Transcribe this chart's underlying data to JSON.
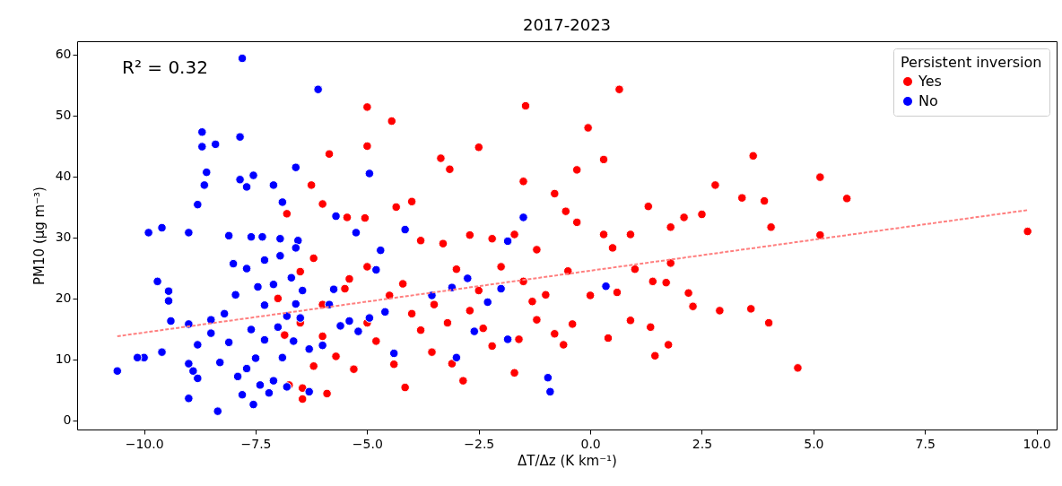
{
  "chart_data": {
    "type": "scatter",
    "title": "2017-2023",
    "xlabel": "ΔT/Δz (K km⁻¹)",
    "ylabel": "PM10 (μg m⁻³)",
    "legend_title": "Persistent inversion",
    "legend": "top right",
    "marker": "circle",
    "grid": false,
    "annotations": [
      "R² = 0.32"
    ],
    "xlim": [
      -11.5,
      10.45
    ],
    "ylim": [
      -1.5,
      62.2
    ],
    "xticks": [
      {
        "value": -10,
        "label": "−10.0"
      },
      {
        "value": -7.5,
        "label": "−7.5"
      },
      {
        "value": -5,
        "label": "−5.0"
      },
      {
        "value": -2.5,
        "label": "−2.5"
      },
      {
        "value": 0,
        "label": "0.0"
      },
      {
        "value": 2.5,
        "label": "2.5"
      },
      {
        "value": 5,
        "label": "5.0"
      },
      {
        "value": 7.5,
        "label": "7.5"
      },
      {
        "value": 10,
        "label": "10.0"
      }
    ],
    "yticks": [
      0,
      10,
      20,
      30,
      40,
      50,
      60
    ],
    "series": [
      {
        "name": "Yes",
        "color": "#ff0000",
        "x": [
          -6.8,
          -6.25,
          -5.85,
          -5.0,
          -4.45,
          -5.0,
          -6.0,
          -5.45,
          -5.05,
          -4.35,
          -4.0,
          -3.35,
          -3.15,
          -2.5,
          -1.45,
          -1.5,
          -0.8,
          -0.05,
          0.65,
          0.3,
          -0.3,
          -0.55,
          -3.8,
          -3.3,
          -2.7,
          -2.2,
          -1.7,
          -1.2,
          -0.3,
          0.3,
          0.5,
          0.9,
          1.3,
          1.8,
          2.1,
          2.5,
          2.8,
          3.4,
          3.65,
          3.9,
          4.05,
          5.15,
          5.75,
          5.15,
          9.8,
          2.2,
          2.3,
          1.4,
          1.7,
          2.9,
          3.6,
          4.0,
          4.65,
          1.45,
          1.75,
          1.35,
          0.9,
          0.4,
          0.0,
          -0.4,
          -0.6,
          -0.8,
          -1.2,
          -1.6,
          -1.7,
          -2.2,
          -2.4,
          -2.85,
          -3.1,
          -3.55,
          -4.15,
          -4.4,
          -4.8,
          -5.3,
          -5.9,
          -6.45,
          -6.45,
          -6.75,
          -6.2,
          -5.7,
          -6.0,
          -6.5,
          -6.0,
          -5.5,
          -5.0,
          -4.5,
          -4.0,
          -3.5,
          -3.0,
          -2.5,
          -2.0,
          -1.5,
          -1.0,
          -0.5,
          -5.4,
          -6.2,
          -5.0,
          -3.8,
          -2.7,
          -1.3,
          -6.5,
          -7.0,
          -6.85,
          -4.2,
          -3.2,
          0.6,
          1.8,
          1.0
        ],
        "values": [
          33.9,
          38.6,
          43.7,
          51.4,
          49.1,
          45.0,
          35.5,
          33.3,
          33.2,
          35.0,
          35.9,
          43.0,
          41.2,
          44.8,
          51.6,
          39.2,
          37.2,
          48.0,
          54.3,
          42.8,
          41.1,
          34.3,
          29.5,
          29.0,
          30.4,
          29.8,
          30.5,
          28.0,
          32.5,
          30.5,
          28.3,
          30.5,
          35.1,
          31.7,
          33.3,
          33.8,
          38.6,
          36.5,
          43.4,
          36.0,
          31.7,
          39.9,
          36.4,
          30.4,
          31.0,
          20.9,
          18.7,
          22.8,
          22.6,
          18.0,
          18.3,
          16.0,
          8.6,
          10.6,
          12.4,
          15.3,
          16.4,
          13.5,
          20.5,
          15.8,
          12.4,
          14.2,
          16.5,
          13.3,
          7.8,
          12.2,
          15.1,
          6.5,
          9.3,
          11.2,
          5.4,
          9.2,
          13.0,
          8.4,
          4.4,
          5.3,
          3.5,
          5.8,
          8.9,
          10.5,
          13.8,
          16.0,
          19.0,
          21.6,
          25.2,
          20.5,
          17.5,
          19.0,
          24.8,
          21.3,
          25.2,
          22.8,
          20.6,
          24.5,
          23.2,
          26.6,
          16.0,
          14.8,
          18.0,
          19.5,
          24.4,
          20.0,
          14.0,
          22.4,
          16.0,
          21.0,
          25.8,
          24.8
        ]
      },
      {
        "name": "No",
        "color": "#0000ff",
        "x": [
          -7.8,
          -6.1,
          -8.7,
          -8.7,
          -8.4,
          -7.85,
          -4.95,
          -8.6,
          -8.65,
          -8.8,
          -7.55,
          -7.7,
          -7.85,
          -6.6,
          -7.1,
          -9.6,
          -9.9,
          -9.0,
          -8.1,
          -7.6,
          -7.35,
          -6.95,
          -6.55,
          -6.9,
          -5.7,
          -5.25,
          -4.7,
          -4.15,
          -1.5,
          -1.85,
          -9.7,
          -9.45,
          -9.45,
          -9.4,
          -9.0,
          -8.5,
          -8.5,
          -8.8,
          -9.6,
          -10.0,
          -10.15,
          -10.6,
          -9.0,
          -8.9,
          -8.8,
          -9.0,
          -8.35,
          -7.8,
          -7.55,
          -7.2,
          -7.7,
          -7.9,
          -7.4,
          -7.1,
          -6.8,
          -6.3,
          -8.1,
          -7.6,
          -7.3,
          -7.0,
          -6.8,
          -6.5,
          -8.2,
          -7.95,
          -7.45,
          -7.1,
          -6.7,
          -6.45,
          -6.6,
          -7.3,
          -8.0,
          -7.7,
          -7.3,
          -6.95,
          -6.6,
          -5.85,
          -5.4,
          -5.2,
          -4.95,
          -4.4,
          -4.6,
          -3.55,
          -3.1,
          -2.75,
          -2.6,
          -3.0,
          -2.3,
          -2.0,
          -1.85,
          -0.95,
          -0.9,
          0.35,
          -6.0,
          -5.6,
          -6.3,
          -7.5,
          -8.3,
          -6.9,
          -6.65,
          -5.75,
          -4.8
        ],
        "values": [
          59.4,
          54.3,
          47.3,
          44.9,
          45.3,
          46.5,
          40.5,
          40.7,
          38.6,
          35.4,
          40.2,
          38.3,
          39.5,
          41.5,
          38.6,
          31.6,
          30.8,
          30.8,
          30.3,
          30.1,
          30.1,
          29.8,
          29.5,
          35.8,
          33.5,
          30.8,
          27.9,
          31.3,
          33.3,
          29.4,
          22.8,
          21.2,
          19.6,
          16.3,
          15.8,
          16.5,
          14.3,
          12.4,
          11.2,
          10.3,
          10.3,
          8.1,
          9.3,
          8.1,
          6.9,
          3.6,
          1.5,
          4.2,
          2.6,
          4.5,
          8.5,
          7.2,
          5.8,
          6.5,
          5.5,
          4.7,
          12.8,
          14.9,
          13.2,
          15.3,
          17.1,
          16.8,
          17.5,
          20.6,
          21.9,
          22.3,
          23.4,
          21.3,
          19.1,
          18.9,
          25.7,
          24.9,
          26.3,
          27.0,
          28.3,
          19.0,
          16.3,
          14.6,
          16.8,
          11.0,
          17.8,
          20.5,
          21.8,
          23.3,
          14.6,
          10.3,
          19.4,
          21.6,
          13.3,
          7.0,
          4.7,
          22.0,
          12.3,
          15.5,
          11.7,
          10.2,
          9.5,
          10.3,
          13.0,
          21.5,
          24.7
        ]
      },
      {
        "type": "line",
        "color": "#ff7f7f",
        "line_style": "dashed",
        "marker": "none",
        "x": [
          -10.6,
          9.8
        ],
        "values": [
          13.8,
          34.5
        ]
      }
    ]
  }
}
